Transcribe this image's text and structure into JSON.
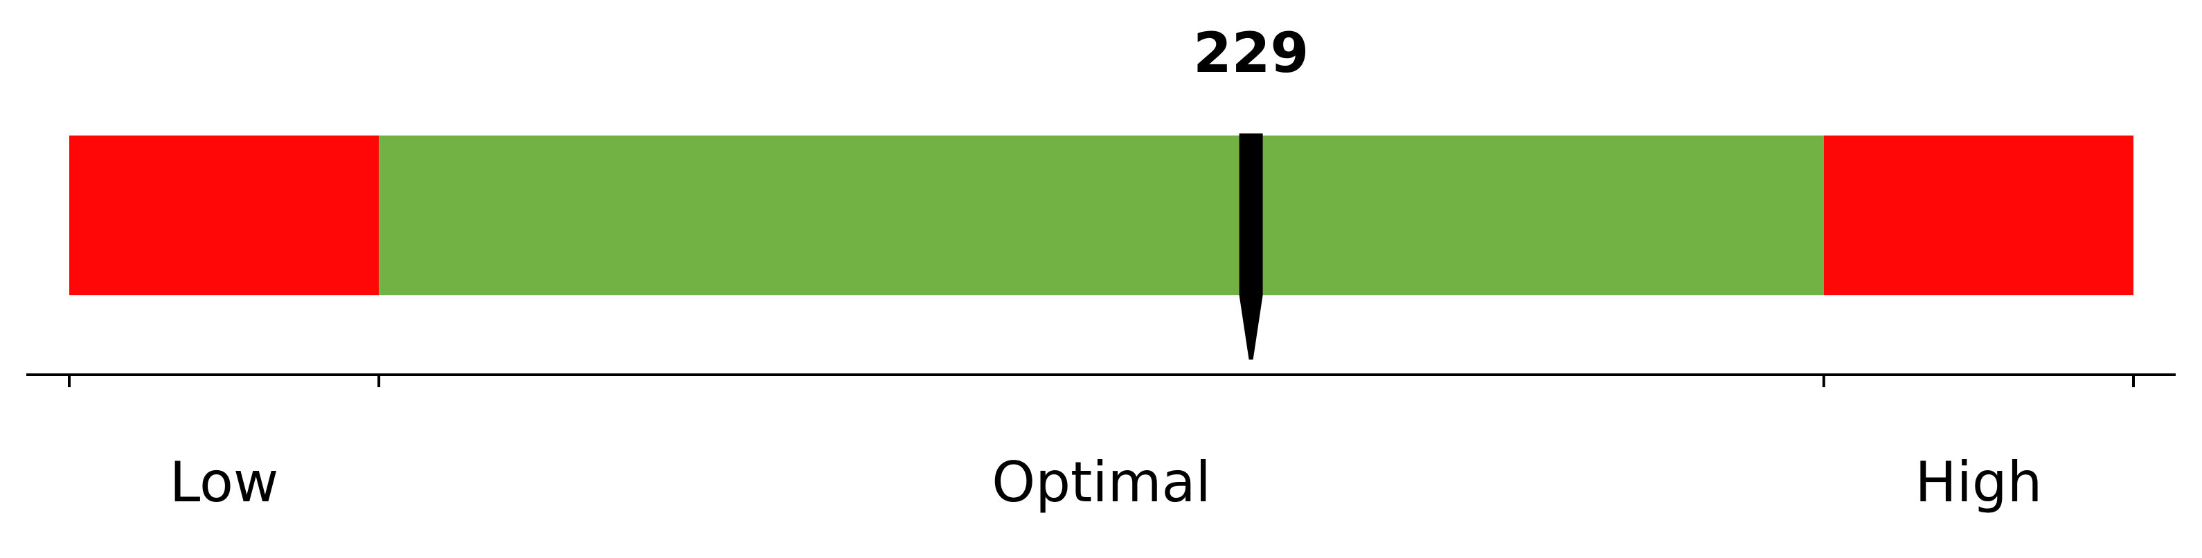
{
  "chart_data": {
    "type": "bar",
    "value": 229,
    "value_label": "229",
    "bands": [
      {
        "label": "Low",
        "from": 0,
        "to": 60,
        "color": "#ff0707"
      },
      {
        "label": "Optimal",
        "from": 60,
        "to": 340,
        "color": "#72b245"
      },
      {
        "label": "High",
        "from": 340,
        "to": 400,
        "color": "#ff0707"
      }
    ],
    "ticks": [
      0,
      60,
      340,
      400
    ],
    "xlim": [
      0,
      400
    ],
    "title": "",
    "xlabel": "",
    "ylabel": "",
    "grid": false,
    "marker_color": "#000000"
  }
}
